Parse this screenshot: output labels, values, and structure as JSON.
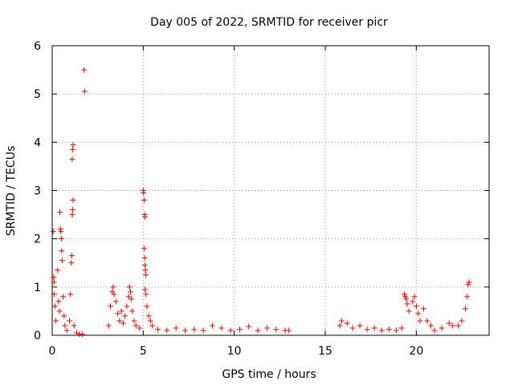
{
  "chart_data": {
    "type": "scatter",
    "title": "Day 005 of 2022, SRMTID for receiver picr",
    "xlabel": "GPS time / hours",
    "ylabel": "SRMTID / TECUs",
    "xlim": [
      0,
      24
    ],
    "ylim": [
      0,
      6
    ],
    "xticks": [
      0,
      5,
      10,
      15,
      20
    ],
    "yticks": [
      0,
      1,
      2,
      3,
      4,
      5,
      6
    ],
    "grid": true,
    "marker": "+",
    "color": "#ff0000",
    "series": [
      {
        "name": "SRMTID",
        "points": [
          [
            0.05,
            2.15
          ],
          [
            0.08,
            1.2
          ],
          [
            0.1,
            1.1
          ],
          [
            0.1,
            0.85
          ],
          [
            0.15,
            0.6
          ],
          [
            0.2,
            0.3
          ],
          [
            0.3,
            1.35
          ],
          [
            0.35,
            0.7
          ],
          [
            0.4,
            0.5
          ],
          [
            0.42,
            2.55
          ],
          [
            0.45,
            2.2
          ],
          [
            0.48,
            2.15
          ],
          [
            0.5,
            2.0
          ],
          [
            0.52,
            1.75
          ],
          [
            0.55,
            1.55
          ],
          [
            0.6,
            0.8
          ],
          [
            0.65,
            0.4
          ],
          [
            0.7,
            0.2
          ],
          [
            0.8,
            0.1
          ],
          [
            0.95,
            0.3
          ],
          [
            1.0,
            0.85
          ],
          [
            1.05,
            1.5
          ],
          [
            1.08,
            1.65
          ],
          [
            1.1,
            2.5
          ],
          [
            1.12,
            2.6
          ],
          [
            1.15,
            2.8
          ],
          [
            1.1,
            3.65
          ],
          [
            1.12,
            3.85
          ],
          [
            1.15,
            3.95
          ],
          [
            1.2,
            0.2
          ],
          [
            1.35,
            0.05
          ],
          [
            1.5,
            0.02
          ],
          [
            1.65,
            0.02
          ],
          [
            1.75,
            5.5
          ],
          [
            1.78,
            5.05
          ],
          [
            3.1,
            0.2
          ],
          [
            3.2,
            0.6
          ],
          [
            3.3,
            0.9
          ],
          [
            3.35,
            1.0
          ],
          [
            3.4,
            0.85
          ],
          [
            3.5,
            0.7
          ],
          [
            3.6,
            0.45
          ],
          [
            3.7,
            0.3
          ],
          [
            3.8,
            0.5
          ],
          [
            3.9,
            0.25
          ],
          [
            4.0,
            0.4
          ],
          [
            4.1,
            0.6
          ],
          [
            4.2,
            0.8
          ],
          [
            4.25,
            1.0
          ],
          [
            4.3,
            0.9
          ],
          [
            4.35,
            0.75
          ],
          [
            4.4,
            0.5
          ],
          [
            4.5,
            0.3
          ],
          [
            4.6,
            0.2
          ],
          [
            4.8,
            0.15
          ],
          [
            5.0,
            3.0
          ],
          [
            5.02,
            2.95
          ],
          [
            5.05,
            2.8
          ],
          [
            5.08,
            2.5
          ],
          [
            5.1,
            2.45
          ],
          [
            5.05,
            1.8
          ],
          [
            5.08,
            1.6
          ],
          [
            5.1,
            1.45
          ],
          [
            5.12,
            1.35
          ],
          [
            5.15,
            1.25
          ],
          [
            5.1,
            0.95
          ],
          [
            5.15,
            0.85
          ],
          [
            5.2,
            0.6
          ],
          [
            5.3,
            0.4
          ],
          [
            5.4,
            0.3
          ],
          [
            5.5,
            0.2
          ],
          [
            5.8,
            0.12
          ],
          [
            6.3,
            0.1
          ],
          [
            6.8,
            0.15
          ],
          [
            7.3,
            0.1
          ],
          [
            7.8,
            0.12
          ],
          [
            8.3,
            0.1
          ],
          [
            8.8,
            0.2
          ],
          [
            9.3,
            0.15
          ],
          [
            9.8,
            0.1
          ],
          [
            10.3,
            0.12
          ],
          [
            10.8,
            0.18
          ],
          [
            11.3,
            0.1
          ],
          [
            11.8,
            0.15
          ],
          [
            12.3,
            0.12
          ],
          [
            12.8,
            0.1
          ],
          [
            13.0,
            0.1
          ],
          [
            15.8,
            0.2
          ],
          [
            15.9,
            0.3
          ],
          [
            16.2,
            0.25
          ],
          [
            16.5,
            0.15
          ],
          [
            16.9,
            0.2
          ],
          [
            17.3,
            0.12
          ],
          [
            17.7,
            0.15
          ],
          [
            18.1,
            0.1
          ],
          [
            18.5,
            0.12
          ],
          [
            18.9,
            0.1
          ],
          [
            19.2,
            0.15
          ],
          [
            19.35,
            0.85
          ],
          [
            19.4,
            0.8
          ],
          [
            19.45,
            0.75
          ],
          [
            19.5,
            0.65
          ],
          [
            19.6,
            0.5
          ],
          [
            19.8,
            0.7
          ],
          [
            19.9,
            0.8
          ],
          [
            20.0,
            0.6
          ],
          [
            20.1,
            0.45
          ],
          [
            20.2,
            0.3
          ],
          [
            20.4,
            0.55
          ],
          [
            20.6,
            0.3
          ],
          [
            20.8,
            0.2
          ],
          [
            21.0,
            0.1
          ],
          [
            21.4,
            0.15
          ],
          [
            21.8,
            0.25
          ],
          [
            22.0,
            0.2
          ],
          [
            22.3,
            0.2
          ],
          [
            22.5,
            0.3
          ],
          [
            22.7,
            0.55
          ],
          [
            22.8,
            0.8
          ],
          [
            22.85,
            1.05
          ],
          [
            22.9,
            1.1
          ]
        ]
      }
    ]
  }
}
